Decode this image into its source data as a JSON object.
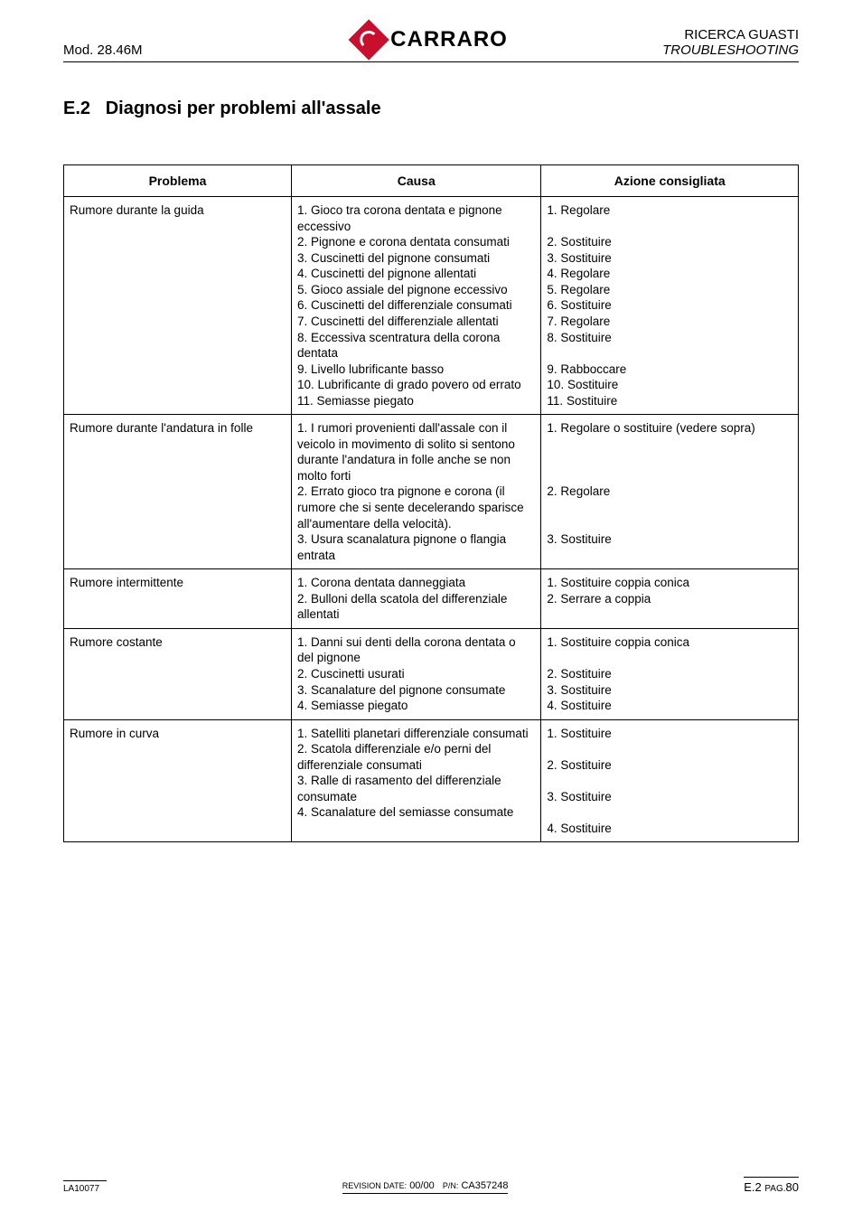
{
  "header": {
    "left": "Mod. 28.46M",
    "logo_text": "CARRARO",
    "right_top": "RICERCA GUASTI",
    "right_bottom": "TROUBLESHOOTING"
  },
  "section": {
    "number": "E.2",
    "title": "Diagnosi per problemi all'assale"
  },
  "table": {
    "headers": {
      "problema": "Problema",
      "causa": "Causa",
      "azione": "Azione consigliata"
    },
    "rows": [
      {
        "problema": "Rumore durante la guida",
        "causa": "1. Gioco tra corona dentata e pignone eccessivo\n2. Pignone e corona dentata consumati\n3. Cuscinetti del pignone consumati\n4. Cuscinetti del pignone allentati\n5. Gioco assiale del pignone eccessivo\n6. Cuscinetti del differenziale consumati\n7. Cuscinetti del differenziale allentati\n8. Eccessiva scentratura della corona dentata\n9. Livello lubrificante basso\n10. Lubrificante di grado povero od errato\n11. Semiasse piegato",
        "azione": "1. Regolare\n\n2. Sostituire\n3. Sostituire\n4. Regolare\n5. Regolare\n6. Sostituire\n7. Regolare\n8. Sostituire\n\n9. Rabboccare\n10. Sostituire\n11. Sostituire"
      },
      {
        "problema": "Rumore  durante l'andatura in folle",
        "causa": "1. I rumori provenienti dall'assale con il veicolo in movimento di solito si sentono durante l'andatura in folle anche se non molto forti\n2. Errato gioco tra pignone e corona (il rumore che si sente decelerando sparisce all'aumentare della velocità).\n3. Usura scanalatura pignone o flangia entrata",
        "azione": "1. Regolare o sostituire (vedere sopra)\n\n\n\n2. Regolare\n\n\n3. Sostituire"
      },
      {
        "problema": "Rumore intermittente",
        "causa": "1. Corona dentata danneggiata\n2. Bulloni della scatola del differenziale allentati",
        "azione": "1. Sostituire coppia conica\n2. Serrare a coppia"
      },
      {
        "problema": "Rumore costante",
        "causa": "1. Danni sui denti della corona dentata o del pignone\n2. Cuscinetti usurati\n3. Scanalature del pignone consumate\n4. Semiasse piegato",
        "azione": "1. Sostituire coppia conica\n\n2. Sostituire\n3. Sostituire\n4. Sostituire"
      },
      {
        "problema": "Rumore in curva",
        "causa": "1. Satelliti planetari differenziale consumati\n2. Scatola differenziale e/o perni del differenziale consumati\n3. Ralle di rasamento del differenziale consumate\n4. Scanalature del semiasse consumate",
        "azione": "1. Sostituire\n\n2. Sostituire\n\n3. Sostituire\n\n4. Sostituire"
      }
    ]
  },
  "footer": {
    "left": "LA10077",
    "center_label1": "REVISION DATE:",
    "center_val1": "00/00",
    "center_label2": "P/N:",
    "center_val2": "CA357248",
    "right_section": "E.2",
    "right_label": "PAG.",
    "right_page": "80"
  },
  "colors": {
    "brand_red": "#c8102e",
    "text": "#000000",
    "background": "#ffffff"
  }
}
